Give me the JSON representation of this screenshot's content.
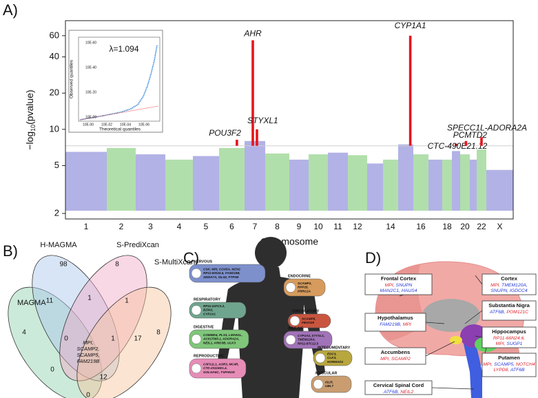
{
  "panel_labels": [
    "A)",
    "B)",
    "C)",
    "D)"
  ],
  "chart_data": {
    "type": "manhattan",
    "xlabel": "Chromosome",
    "ylabel": [
      "−log",
      "10",
      "(pvalue)"
    ],
    "categories": [
      "1",
      "2",
      "3",
      "4",
      "5",
      "6",
      "7",
      "8",
      "9",
      "10",
      "11",
      "12",
      null,
      "14",
      null,
      "16",
      null,
      "18",
      null,
      "20",
      null,
      "22",
      "X"
    ],
    "values": [
      6.5,
      7,
      6.2,
      5.6,
      6,
      7,
      8,
      6.3,
      5.6,
      6.2,
      6.4,
      6.1,
      5.2,
      5.6,
      7.5,
      6.2,
      5.6,
      5.6,
      6.6,
      6.2,
      5.6,
      6.8,
      4.6
    ],
    "colors": [
      "#aaaae3",
      "#a9dca2"
    ],
    "hit_color": "#e8141c",
    "threshold_color": "#cfcfcf",
    "log": true,
    "ylim": [
      1.8,
      80
    ],
    "yticks": [
      2,
      5,
      10,
      20,
      40,
      60
    ],
    "threshold": 7.3,
    "hits": [
      {
        "label": "POU3F2",
        "x": 6.7,
        "value": 8.2
      },
      {
        "label": "AHR",
        "x": 7.4,
        "value": 55
      },
      {
        "label": "STYXL1",
        "x": 7.6,
        "value": 10
      },
      {
        "label": "CYP1A1",
        "x": 15.8,
        "value": 60
      },
      {
        "label": "CTC-490E21.12",
        "x": 19.5,
        "value": 7.6
      },
      {
        "label": "PCMTD2",
        "x": 20.6,
        "value": 8
      },
      {
        "label": "SPECC1L-ADORA2A",
        "x": 22.5,
        "value": 8.6
      }
    ]
  },
  "inset": {
    "annotation": "λ=1.094",
    "xlabel": "Theoretical quantiles",
    "ylabel": "Observed quantiles",
    "xticks": [
      "10E-00",
      "10E-02",
      "10E-04",
      "10E-06"
    ],
    "yticks": [
      "10E-00",
      "10E-20",
      "10E-40",
      "10E-60"
    ]
  },
  "venn": {
    "sets": [
      {
        "name": "MAGMA",
        "color": "#8fd0aa"
      },
      {
        "name": "H-MAGMA",
        "color": "#a9c6ea"
      },
      {
        "name": "S-PrediXcan",
        "color": "#f2a9c6"
      },
      {
        "name": "S-MultiXcan",
        "color": "#f6c49c"
      }
    ],
    "regions": [
      4,
      98,
      8,
      8,
      11,
      1,
      1,
      0,
      1,
      17,
      0,
      12,
      0
    ],
    "shared": [
      "MPI,",
      "SCAMP2,",
      "SCAMP5,",
      "FAM219B"
    ]
  },
  "body": {
    "systems": [
      {
        "name": "NERVOUS",
        "color": "#7d90cc",
        "genes": [
          "CSK, MPI, COX5A, MZH2",
          "RP11-60024.6, FAM219B,",
          "SEMA7A, ISL92, PTPN9"
        ]
      },
      {
        "name": "ENDOCRINE",
        "color": "#d69b5d",
        "genes": [
          "SCAMP2,",
          "RPP25,",
          "PRRC2A"
        ]
      },
      {
        "name": "RESPIRATORY",
        "color": "#6fa58e",
        "genes": [
          "RP11-247C3.2,",
          "BZW2,",
          "CYP1A1"
        ]
      },
      {
        "name": "CIRCULATORY",
        "color": "#c9553f",
        "genes": [
          "SCAMP5,",
          "FBXO28"
        ]
      },
      {
        "name": "DIGESTIVE",
        "color": "#7fc67a",
        "genes": [
          "COMMD4, PLS3, LMAN1L,",
          "AC017060.1, ADORA2A,",
          "NEIL1, ARID3B, ULK3"
        ]
      },
      {
        "name": "IMMUNE",
        "color": "#a173b8",
        "genes": [
          "CYP1A2, STYXL1,",
          "TMEM120A,",
          "RP11-87C12.5"
        ]
      },
      {
        "name": "INTEGUMENTARY",
        "color": "#b8a63e",
        "genes": [
          "EDC3,",
          "CLK3,",
          "HORMAD1"
        ]
      },
      {
        "name": "REPRODUCTIVE",
        "color": "#e68cb7",
        "genes": [
          "C0FS1L1, AGR3, MC4R,",
          "CTD-2311M21.4,",
          "GOLGA6C, TSPAN19"
        ]
      },
      {
        "name": "MUSCULAR",
        "color": "#c99d70",
        "genes": [
          "ISLR,",
          "UBL7"
        ]
      }
    ]
  },
  "brain": {
    "regions": [
      {
        "name": "Frontal Cortex",
        "lines": [
          [
            {
              "text": "MPI, ",
              "color": "#e0202a"
            },
            {
              "text": "SNUPN",
              "color": "#2438d8"
            }
          ],
          [
            {
              "text": "MAN2C1, HAUS4",
              "color": "#2438d8"
            }
          ]
        ]
      },
      {
        "name": "Cortex",
        "lines": [
          [
            {
              "text": "MPI, ",
              "color": "#e0202a"
            },
            {
              "text": "TMEM120A,",
              "color": "#2438d8"
            }
          ],
          [
            {
              "text": "SNUPN, IGDCC4",
              "color": "#2438d8"
            }
          ]
        ]
      },
      {
        "name": "Hypothalamus",
        "lines": [
          [
            {
              "text": "FAM219B, ",
              "color": "#2438d8"
            },
            {
              "text": "MPI",
              "color": "#e0202a"
            }
          ]
        ]
      },
      {
        "name": "Substantia Nigra",
        "lines": [
          [
            {
              "text": "ATF6B, ",
              "color": "#2438d8"
            },
            {
              "text": "POM121C",
              "color": "#e0202a"
            }
          ]
        ]
      },
      {
        "name": "Hippocampus",
        "lines": [
          [
            {
              "text": "RP11-66N24.6,",
              "color": "#e0202a"
            }
          ],
          [
            {
              "text": "MPI, ",
              "color": "#e0202a"
            },
            {
              "text": "SUGP1",
              "color": "#2438d8"
            }
          ]
        ]
      },
      {
        "name": "Accumbens",
        "lines": [
          [
            {
              "text": "MPI, SCAMP2",
              "color": "#e0202a"
            }
          ]
        ]
      },
      {
        "name": "Putamen",
        "lines": [
          [
            {
              "text": "MPI, ",
              "color": "#e0202a"
            },
            {
              "text": "SCAMP5, ",
              "color": "#2438d8"
            },
            {
              "text": "NOTCH4",
              "color": "#e0202a"
            }
          ],
          [
            {
              "text": "LYPD8, ",
              "color": "#e0202a"
            },
            {
              "text": "ATF6B",
              "color": "#2438d8"
            }
          ]
        ]
      },
      {
        "name": "Cervical Spinal Cord",
        "lines": [
          [
            {
              "text": "ATF6B, ",
              "color": "#2438d8"
            },
            {
              "text": "NEIL2",
              "color": "#e0202a"
            }
          ]
        ]
      }
    ]
  }
}
